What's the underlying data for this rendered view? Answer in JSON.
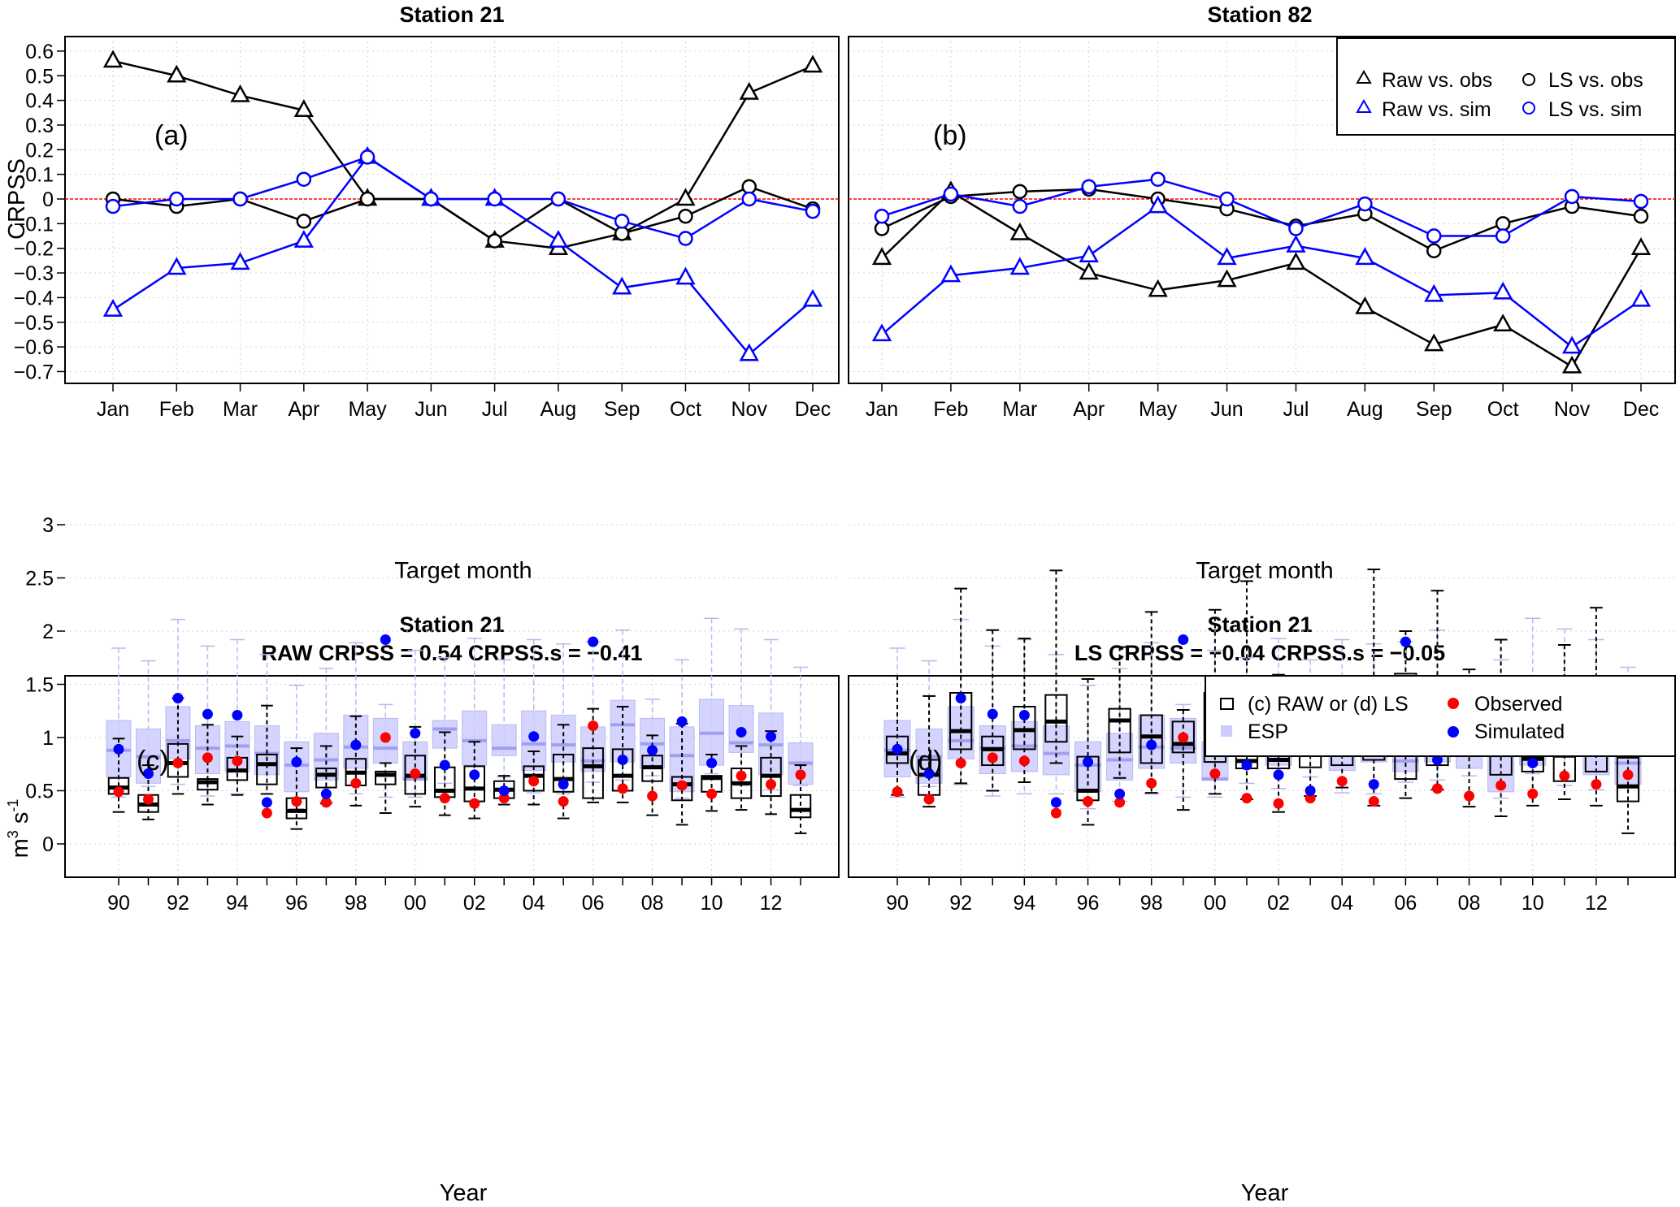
{
  "chart_data": [
    {
      "type": "line",
      "panel_label": "(a)",
      "title": "Station 21",
      "xlabel": "Target month",
      "ylabel": "CRPSS",
      "ylim": [
        -0.75,
        0.65
      ],
      "yticks": [
        "0.6",
        "0.5",
        "0.4",
        "0.3",
        "0.2",
        "0.1",
        "0",
        "-0.1",
        "-0.2",
        "-0.3",
        "-0.4",
        "-0.5",
        "-0.6",
        "-0.7"
      ],
      "categories": [
        "Jan",
        "Feb",
        "Mar",
        "Apr",
        "May",
        "Jun",
        "Jul",
        "Aug",
        "Sep",
        "Oct",
        "Nov",
        "Dec"
      ],
      "grid": true,
      "reference_line": 0,
      "series": [
        {
          "name": "Raw vs. obs",
          "marker": "triangle",
          "color": "#000000",
          "values": [
            0.56,
            0.5,
            0.42,
            0.36,
            0.0,
            0.0,
            -0.17,
            -0.2,
            -0.14,
            0.0,
            0.43,
            0.54
          ]
        },
        {
          "name": "LS vs. obs",
          "marker": "circle",
          "color": "#000000",
          "values": [
            0.0,
            -0.03,
            0.0,
            -0.09,
            0.0,
            0.0,
            -0.17,
            0.0,
            -0.14,
            -0.07,
            0.05,
            -0.04
          ]
        },
        {
          "name": "Raw vs. sim",
          "marker": "triangle",
          "color": "#0000ff",
          "values": [
            -0.45,
            -0.28,
            -0.26,
            -0.17,
            0.17,
            0.0,
            0.0,
            -0.17,
            -0.36,
            -0.32,
            -0.63,
            -0.41
          ]
        },
        {
          "name": "LS vs. sim",
          "marker": "circle",
          "color": "#0000ff",
          "values": [
            -0.03,
            0.0,
            0.0,
            0.08,
            0.17,
            0.0,
            0.0,
            0.0,
            -0.09,
            -0.16,
            0.0,
            -0.05
          ]
        }
      ]
    },
    {
      "type": "line",
      "panel_label": "(b)",
      "title": "Station 82",
      "xlabel": "Target month",
      "ylabel": "",
      "ylim": [
        -0.75,
        0.65
      ],
      "categories": [
        "Jan",
        "Feb",
        "Mar",
        "Apr",
        "May",
        "Jun",
        "Jul",
        "Aug",
        "Sep",
        "Oct",
        "Nov",
        "Dec"
      ],
      "grid": true,
      "reference_line": 0,
      "legend": {
        "position": "top-right",
        "entries": [
          "Raw vs. obs",
          "LS vs. obs",
          "Raw vs. sim",
          "LS vs. sim"
        ]
      },
      "series": [
        {
          "name": "Raw vs. obs",
          "marker": "triangle",
          "color": "#000000",
          "values": [
            -0.24,
            0.03,
            -0.14,
            -0.3,
            -0.37,
            -0.33,
            -0.26,
            -0.44,
            -0.59,
            -0.51,
            -0.68,
            -0.2
          ]
        },
        {
          "name": "LS vs. obs",
          "marker": "circle",
          "color": "#000000",
          "values": [
            -0.12,
            0.01,
            0.03,
            0.04,
            0.0,
            -0.04,
            -0.11,
            -0.06,
            -0.21,
            -0.1,
            -0.03,
            -0.07
          ]
        },
        {
          "name": "Raw vs. sim",
          "marker": "triangle",
          "color": "#0000ff",
          "values": [
            -0.55,
            -0.31,
            -0.28,
            -0.23,
            -0.03,
            -0.24,
            -0.19,
            -0.24,
            -0.39,
            -0.38,
            -0.6,
            -0.41
          ]
        },
        {
          "name": "LS vs. sim",
          "marker": "circle",
          "color": "#0000ff",
          "values": [
            -0.07,
            0.02,
            -0.03,
            0.05,
            0.08,
            0.0,
            -0.12,
            -0.02,
            -0.15,
            -0.15,
            0.01,
            -0.01
          ]
        }
      ]
    },
    {
      "type": "box",
      "panel_label": "(c)",
      "title": "Station 21",
      "subtitle": "RAW CRPSS = 0.54 CRPSS.s = −0.41",
      "xlabel": "Year",
      "ylabel": "m3 s-1",
      "ylim": [
        0,
        3
      ],
      "yticks": [
        "0",
        "0.5",
        "1",
        "1.5",
        "2",
        "2.5",
        "3"
      ],
      "years": [
        "90",
        "91",
        "92",
        "93",
        "94",
        "95",
        "96",
        "97",
        "98",
        "99",
        "00",
        "01",
        "02",
        "03",
        "04",
        "05",
        "06",
        "07",
        "08",
        "09",
        "10",
        "11",
        "12",
        "13"
      ],
      "xtick_labels": [
        "90",
        "92",
        "94",
        "96",
        "98",
        "00",
        "02",
        "04",
        "06",
        "08",
        "10",
        "12"
      ],
      "grid": true,
      "forecast": [
        [
          0.3,
          0.47,
          0.53,
          0.62,
          0.99
        ],
        [
          0.23,
          0.3,
          0.37,
          0.46,
          0.74
        ],
        [
          0.47,
          0.63,
          0.76,
          0.94,
          1.37
        ],
        [
          0.37,
          0.51,
          0.58,
          0.61,
          1.12
        ],
        [
          0.46,
          0.6,
          0.69,
          0.81,
          1.01
        ],
        [
          0.47,
          0.56,
          0.75,
          0.84,
          1.3
        ],
        [
          0.14,
          0.24,
          0.31,
          0.43,
          0.9
        ],
        [
          0.38,
          0.53,
          0.65,
          0.71,
          0.92
        ],
        [
          0.36,
          0.55,
          0.67,
          0.8,
          1.2
        ],
        [
          0.29,
          0.56,
          0.65,
          0.68,
          0.76
        ],
        [
          0.35,
          0.47,
          0.64,
          0.83,
          1.1
        ],
        [
          0.27,
          0.44,
          0.5,
          0.72,
          1.05
        ],
        [
          0.24,
          0.4,
          0.52,
          0.73,
          0.96
        ],
        [
          0.37,
          0.43,
          0.51,
          0.59,
          0.64
        ],
        [
          0.37,
          0.5,
          0.64,
          0.73,
          0.87
        ],
        [
          0.24,
          0.49,
          0.61,
          0.84,
          1.12
        ],
        [
          0.39,
          0.43,
          0.73,
          0.9,
          1.27
        ],
        [
          0.39,
          0.5,
          0.64,
          0.89,
          1.29
        ],
        [
          0.27,
          0.59,
          0.72,
          0.83,
          1.02
        ],
        [
          0.18,
          0.41,
          0.56,
          0.63,
          1.13
        ],
        [
          0.31,
          0.49,
          0.62,
          0.64,
          0.84
        ],
        [
          0.32,
          0.43,
          0.57,
          0.71,
          0.92
        ],
        [
          0.28,
          0.45,
          0.64,
          0.81,
          1.06
        ],
        [
          0.1,
          0.25,
          0.32,
          0.46,
          0.74
        ]
      ],
      "esp": [
        [
          0.44,
          0.63,
          0.88,
          1.16,
          1.84
        ],
        [
          0.54,
          0.57,
          0.82,
          1.08,
          1.72
        ],
        [
          0.56,
          0.8,
          0.97,
          1.29,
          2.11
        ],
        [
          0.45,
          0.66,
          0.9,
          1.11,
          1.86
        ],
        [
          0.47,
          0.68,
          0.92,
          1.15,
          1.92
        ],
        [
          0.47,
          0.65,
          0.85,
          1.11,
          1.78
        ],
        [
          0.33,
          0.49,
          0.74,
          0.96,
          1.49
        ],
        [
          0.4,
          0.6,
          0.79,
          1.04,
          1.65
        ],
        [
          0.47,
          0.71,
          0.91,
          1.21,
          1.89
        ],
        [
          0.44,
          0.76,
          0.9,
          1.18,
          1.31
        ],
        [
          0.44,
          0.6,
          0.61,
          0.96,
          1.82
        ],
        [
          0.57,
          0.9,
          1.08,
          1.16,
          1.75
        ],
        [
          0.52,
          0.74,
          0.97,
          1.25,
          1.93
        ],
        [
          0.63,
          0.83,
          0.9,
          1.12,
          1.73
        ],
        [
          0.48,
          0.69,
          0.94,
          1.25,
          1.92
        ],
        [
          0.47,
          0.77,
          0.93,
          1.21,
          1.88
        ],
        [
          0.58,
          0.68,
          0.78,
          1.1,
          1.9
        ],
        [
          0.6,
          0.77,
          1.12,
          1.35,
          2.01
        ],
        [
          0.64,
          0.71,
          0.94,
          1.18,
          1.36
        ],
        [
          0.43,
          0.49,
          0.83,
          1.1,
          1.73
        ],
        [
          0.66,
          0.74,
          1.04,
          1.36,
          2.12
        ],
        [
          0.55,
          0.86,
          0.95,
          1.3,
          2.02
        ],
        [
          0.51,
          0.65,
          0.93,
          1.23,
          1.92
        ],
        [
          0.55,
          0.56,
          0.76,
          0.95,
          1.66
        ]
      ],
      "observed": [
        0.49,
        0.42,
        0.76,
        0.81,
        0.78,
        0.29,
        0.4,
        0.39,
        0.57,
        1.0,
        0.66,
        0.43,
        0.38,
        0.43,
        0.59,
        0.4,
        1.11,
        0.52,
        0.45,
        0.55,
        0.47,
        0.64,
        0.56,
        0.65
      ],
      "simulated": [
        0.89,
        0.66,
        1.37,
        1.22,
        1.21,
        0.39,
        0.77,
        0.47,
        0.93,
        1.92,
        1.04,
        0.74,
        0.65,
        0.5,
        1.01,
        0.56,
        1.9,
        0.79,
        0.88,
        1.15,
        0.76,
        1.05,
        1.01,
        null
      ]
    },
    {
      "type": "box",
      "panel_label": "(d)",
      "title": "Station 21",
      "subtitle": "LS CRPSS = −0.04 CRPSS.s = −0.05",
      "xlabel": "Year",
      "ylabel": "",
      "ylim": [
        0,
        3
      ],
      "years": [
        "90",
        "91",
        "92",
        "93",
        "94",
        "95",
        "96",
        "97",
        "98",
        "99",
        "00",
        "01",
        "02",
        "03",
        "04",
        "05",
        "06",
        "07",
        "08",
        "09",
        "10",
        "11",
        "12",
        "13"
      ],
      "xtick_labels": [
        "90",
        "92",
        "94",
        "96",
        "98",
        "00",
        "02",
        "04",
        "06",
        "08",
        "10",
        "12"
      ],
      "grid": true,
      "legend": {
        "position": "top-right",
        "entries": [
          "(c) RAW or (d) LS",
          "ESP",
          "Observed",
          "Simulated"
        ]
      },
      "forecast": [
        [
          0.46,
          0.76,
          0.85,
          1.01,
          1.58
        ],
        [
          0.35,
          0.46,
          0.65,
          0.79,
          1.39
        ],
        [
          0.57,
          0.89,
          1.06,
          1.42,
          2.4
        ],
        [
          0.5,
          0.74,
          0.89,
          1.01,
          2.01
        ],
        [
          0.58,
          0.89,
          1.07,
          1.29,
          1.93
        ],
        [
          0.76,
          0.96,
          1.15,
          1.4,
          2.57
        ],
        [
          0.18,
          0.41,
          0.5,
          0.82,
          1.55
        ],
        [
          0.62,
          0.86,
          1.16,
          1.27,
          1.85
        ],
        [
          0.48,
          0.76,
          1.01,
          1.21,
          2.18
        ],
        [
          0.32,
          0.86,
          0.94,
          1.15,
          1.26
        ],
        [
          0.47,
          0.77,
          1.02,
          1.42,
          2.2
        ],
        [
          0.42,
          0.71,
          0.78,
          0.99,
          2.47
        ],
        [
          0.3,
          0.71,
          0.79,
          1.28,
          1.59
        ],
        [
          0.45,
          0.72,
          0.89,
          1.03,
          1.32
        ],
        [
          0.53,
          0.74,
          0.98,
          1.19,
          1.46
        ],
        [
          0.36,
          0.79,
          1.03,
          1.38,
          2.58
        ],
        [
          0.43,
          0.61,
          1.09,
          1.6,
          2.0
        ],
        [
          0.51,
          0.74,
          0.98,
          1.41,
          2.38
        ],
        [
          0.35,
          0.96,
          1.11,
          1.36,
          1.64
        ],
        [
          0.26,
          0.65,
          0.93,
          1.03,
          1.92
        ],
        [
          0.36,
          0.68,
          0.8,
          0.86,
          1.25
        ],
        [
          0.42,
          0.59,
          0.83,
          1.1,
          1.87
        ],
        [
          0.36,
          0.68,
          0.98,
          1.38,
          2.22
        ],
        [
          0.1,
          0.4,
          0.54,
          0.81,
          1.34
        ]
      ],
      "esp": [
        [
          0.44,
          0.63,
          0.88,
          1.16,
          1.84
        ],
        [
          0.54,
          0.57,
          0.82,
          1.08,
          1.72
        ],
        [
          0.56,
          0.8,
          0.97,
          1.29,
          2.11
        ],
        [
          0.45,
          0.66,
          0.9,
          1.11,
          1.86
        ],
        [
          0.47,
          0.68,
          0.92,
          1.15,
          1.92
        ],
        [
          0.47,
          0.65,
          0.85,
          1.11,
          1.78
        ],
        [
          0.33,
          0.49,
          0.74,
          0.96,
          1.49
        ],
        [
          0.4,
          0.6,
          0.79,
          1.04,
          1.65
        ],
        [
          0.47,
          0.71,
          0.91,
          1.21,
          1.89
        ],
        [
          0.44,
          0.76,
          0.9,
          1.18,
          1.31
        ],
        [
          0.44,
          0.6,
          0.61,
          0.96,
          1.82
        ],
        [
          0.57,
          0.9,
          1.08,
          1.16,
          1.75
        ],
        [
          0.52,
          0.74,
          0.97,
          1.25,
          1.93
        ],
        [
          0.63,
          0.83,
          0.9,
          1.12,
          1.73
        ],
        [
          0.48,
          0.69,
          0.94,
          1.25,
          1.92
        ],
        [
          0.47,
          0.77,
          0.93,
          1.21,
          1.88
        ],
        [
          0.58,
          0.68,
          0.78,
          1.1,
          1.9
        ],
        [
          0.6,
          0.77,
          1.12,
          1.35,
          2.01
        ],
        [
          0.64,
          0.71,
          0.94,
          1.18,
          1.36
        ],
        [
          0.43,
          0.49,
          0.83,
          1.1,
          1.73
        ],
        [
          0.66,
          0.74,
          1.04,
          1.36,
          2.12
        ],
        [
          0.55,
          0.86,
          0.95,
          1.3,
          2.02
        ],
        [
          0.51,
          0.65,
          0.93,
          1.23,
          1.92
        ],
        [
          0.55,
          0.56,
          0.76,
          0.95,
          1.66
        ]
      ],
      "observed": [
        0.49,
        0.42,
        0.76,
        0.81,
        0.78,
        0.29,
        0.4,
        0.39,
        0.57,
        1.0,
        0.66,
        0.43,
        0.38,
        0.43,
        0.59,
        0.4,
        1.11,
        0.52,
        0.45,
        0.55,
        0.47,
        0.64,
        0.56,
        0.65
      ],
      "simulated": [
        0.89,
        0.66,
        1.37,
        1.22,
        1.21,
        0.39,
        0.77,
        0.47,
        0.93,
        1.92,
        1.04,
        0.74,
        0.65,
        0.5,
        1.01,
        0.56,
        1.9,
        0.79,
        0.88,
        1.15,
        0.76,
        1.05,
        1.01,
        null
      ]
    }
  ],
  "legend_top": {
    "raw_obs": "Raw vs. obs",
    "ls_obs": "LS vs. obs",
    "raw_sim": "Raw vs. sim",
    "ls_sim": "LS vs. sim"
  },
  "legend_bottom": {
    "forecast": "(c) RAW or (d) LS",
    "esp": "ESP",
    "observed": "Observed",
    "simulated": "Simulated"
  },
  "colors": {
    "black_series": "#000000",
    "blue_series": "#0000ff",
    "reference_line": "#ff0000",
    "esp_fill": "#ccccff",
    "esp_median": "#a0a0f0",
    "observed": "#ff0000",
    "simulated": "#0000ff"
  }
}
